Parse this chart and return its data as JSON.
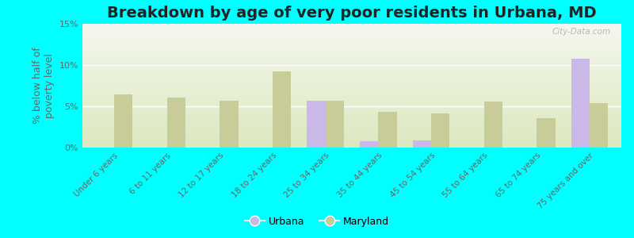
{
  "title": "Breakdown by age of very poor residents in Urbana, MD",
  "ylabel": "% below half of\npoverty level",
  "categories": [
    "Under 6 years",
    "6 to 11 years",
    "12 to 17 years",
    "18 to 24 years",
    "25 to 34 years",
    "35 to 44 years",
    "45 to 54 years",
    "55 to 64 years",
    "65 to 74 years",
    "75 years and over"
  ],
  "urbana_values": [
    0,
    0,
    0,
    0,
    5.7,
    0.8,
    0.9,
    0,
    0,
    10.8
  ],
  "maryland_values": [
    6.4,
    6.1,
    5.7,
    9.2,
    5.7,
    4.3,
    4.1,
    5.6,
    3.6,
    5.4
  ],
  "urbana_color": "#c9b8e8",
  "maryland_color": "#c8cc99",
  "background_color": "#00ffff",
  "plot_bg_top": "#f5f8ee",
  "plot_bg_bottom": "#dce8c0",
  "ylim": [
    0,
    15
  ],
  "yticks": [
    0,
    5,
    10,
    15
  ],
  "ytick_labels": [
    "0%",
    "5%",
    "10%",
    "15%"
  ],
  "bar_width": 0.35,
  "title_fontsize": 14,
  "axis_label_fontsize": 9,
  "tick_fontsize": 8,
  "legend_fontsize": 9,
  "watermark": "City-Data.com"
}
